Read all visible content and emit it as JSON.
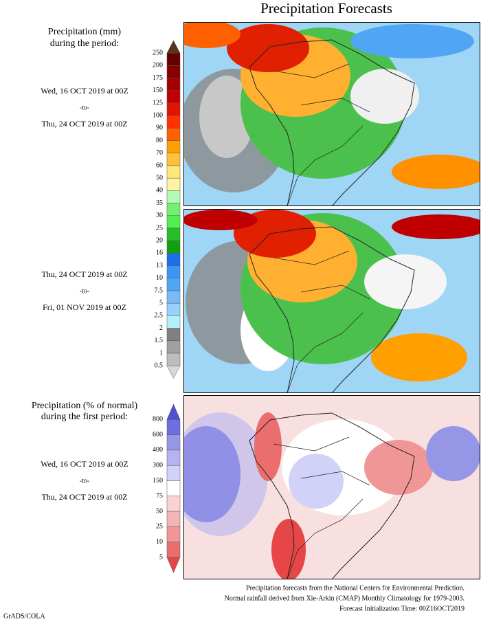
{
  "title": "Precipitation Forecasts",
  "legend_mm": {
    "heading": [
      "Precipitation (mm)",
      "during the period:"
    ],
    "labels": [
      250,
      200,
      175,
      150,
      125,
      100,
      90,
      80,
      70,
      60,
      50,
      40,
      35,
      30,
      25,
      20,
      16,
      13,
      10,
      7.5,
      5,
      2.5,
      2,
      1.5,
      1,
      0.5
    ]
  },
  "period_1": {
    "start": "Wed, 16 OCT 2019 at 00Z",
    "to": "-to-",
    "end": "Thu, 24 OCT 2019 at 00Z"
  },
  "period_2": {
    "start": "Thu, 24 OCT 2019 at 00Z",
    "to": "-to-",
    "end": "Fri, 01 NOV 2019 at 00Z"
  },
  "legend_pct": {
    "heading": [
      "Precipitation (% of normal)",
      "during the first period:"
    ],
    "labels": [
      800,
      600,
      400,
      300,
      150,
      75,
      50,
      25,
      10,
      5
    ]
  },
  "period_pct": {
    "start": "Wed, 16 OCT 2019 at 00Z",
    "to": "-to-",
    "end": "Thu, 24 OCT 2019 at 00Z"
  },
  "footer": [
    "Precipitation forecasts from the National Centers for Environmental Prediction.",
    "Normal rainfall derived from Xie-Arkin (CMAP) Monthly Climatology for 1979-2003.",
    "Forecast Initialization Time: 00Z16OCT2019"
  ],
  "credit": "GrADS/COLA"
}
